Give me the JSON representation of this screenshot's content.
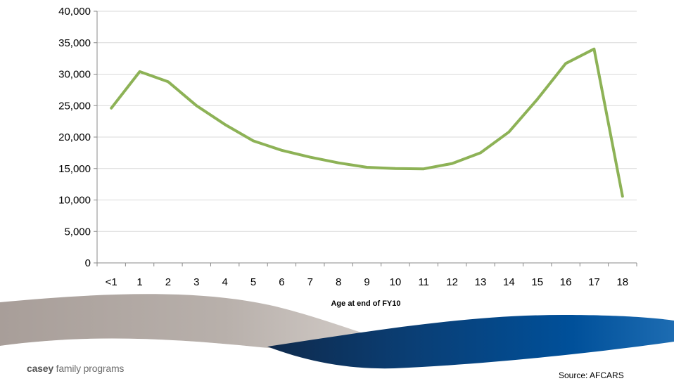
{
  "chart_data": {
    "type": "line",
    "title": "",
    "xlabel": "Age at end of FY10",
    "ylabel": "",
    "categories": [
      "<1",
      "1",
      "2",
      "3",
      "4",
      "5",
      "6",
      "7",
      "8",
      "9",
      "10",
      "11",
      "12",
      "13",
      "14",
      "15",
      "16",
      "17",
      "18"
    ],
    "series": [
      {
        "name": "",
        "color": "#8db256",
        "values": [
          24600,
          30400,
          28800,
          25000,
          22000,
          19400,
          17900,
          16800,
          15900,
          15200,
          15000,
          14950,
          15800,
          17500,
          20800,
          26000,
          31700,
          34000,
          10600
        ]
      }
    ],
    "ylim": [
      0,
      40000
    ],
    "yticks": [
      0,
      5000,
      10000,
      15000,
      20000,
      25000,
      30000,
      35000,
      40000
    ],
    "ytick_labels": [
      "0",
      "5,000",
      "10,000",
      "15,000",
      "20,000",
      "25,000",
      "30,000",
      "35,000",
      "40,000"
    ],
    "grid": true
  },
  "footer": {
    "brand_bold": "casey",
    "brand_rest": " family programs",
    "source": "Source: AFCARS"
  },
  "colors": {
    "line": "#8db256",
    "grid": "#d9d9d9",
    "axis": "#888888",
    "swoosh_gray": "#a89e99",
    "swoosh_blue": "#00509a",
    "swoosh_navy": "#0f2a4c"
  }
}
